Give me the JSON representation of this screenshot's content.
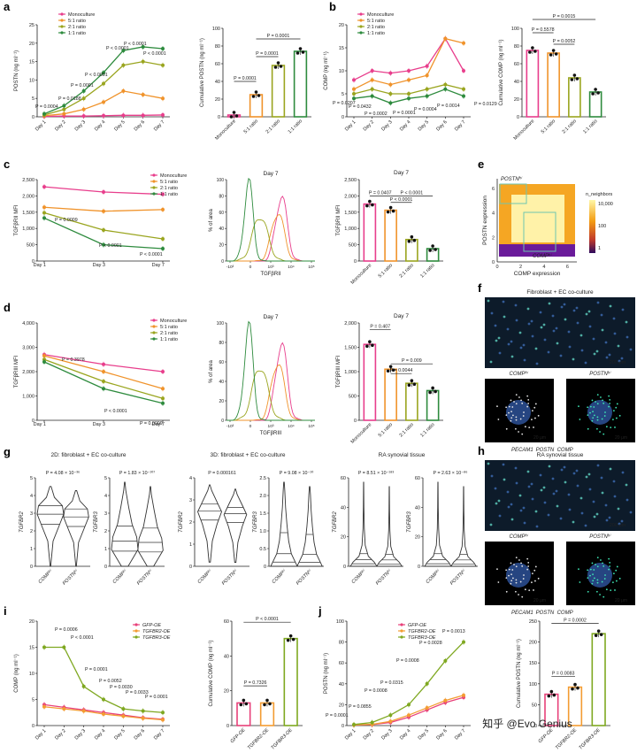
{
  "colors": {
    "mono": "#e83e8c",
    "r51": "#f0932b",
    "r21": "#9aa51f",
    "r11": "#2e8b3e",
    "gfp": "#e8417a",
    "tgfbr2": "#f39c32",
    "tgfbr3": "#7fa821"
  },
  "panels": {
    "a": {
      "letter": "a",
      "line": {
        "type": "line",
        "ylabel": "POSTN (ng ml⁻¹)",
        "ylim": [
          0,
          25
        ],
        "yticks": [
          0,
          5,
          10,
          15,
          20,
          25
        ],
        "categories": [
          "Day 1",
          "Day 2",
          "Day 3",
          "Day 4",
          "Day 5",
          "Day 6",
          "Day 7"
        ],
        "series": [
          {
            "name": "Monoculture",
            "values": [
              0.1,
              0.2,
              0.2,
              0.3,
              0.4,
              0.4,
              0.5
            ]
          },
          {
            "name": "5:1 ratio",
            "values": [
              0.3,
              0.8,
              2.0,
              4.0,
              7.0,
              6.0,
              5.0
            ]
          },
          {
            "name": "2:1 ratio",
            "values": [
              0.5,
              2.0,
              5.0,
              9.0,
              14.0,
              15.0,
              14.0
            ]
          },
          {
            "name": "1:1 ratio",
            "values": [
              0.8,
              3.0,
              7.0,
              12.0,
              18.0,
              19.0,
              18.5
            ]
          }
        ],
        "annotations": [
          "P = 0.0004",
          "P = 0.0188",
          "P = 0.0001",
          "P < 0.0001",
          "P < 0.0001",
          "P < 0.0001",
          "P < 0.0001"
        ]
      },
      "bar": {
        "type": "bar",
        "ylabel": "Cumulative POSTN (ng ml⁻¹)",
        "ylim": [
          0,
          100
        ],
        "yticks": [
          0,
          20,
          40,
          60,
          80,
          100
        ],
        "categories": [
          "Monoculture",
          "5:1 ratio",
          "2:1 ratio",
          "1:1 ratio"
        ],
        "values": [
          2,
          25,
          58,
          74
        ],
        "annotations": [
          "P = 0.0001",
          "P = 0.0001",
          "P = 0.0001"
        ]
      }
    },
    "b": {
      "letter": "b",
      "line": {
        "type": "line",
        "ylabel": "COMP (ng ml⁻¹)",
        "ylim": [
          0,
          20
        ],
        "yticks": [
          0,
          5,
          10,
          15,
          20
        ],
        "categories": [
          "Day 1",
          "Day 2",
          "Day 3",
          "Day 4",
          "Day 5",
          "Day 6",
          "Day 7"
        ],
        "series": [
          {
            "name": "Monoculture",
            "values": [
              8,
              10,
              9.5,
              10,
              11,
              17,
              10
            ]
          },
          {
            "name": "5:1 ratio",
            "values": [
              6,
              8,
              7,
              8,
              9,
              17,
              16
            ]
          },
          {
            "name": "2:1 ratio",
            "values": [
              5,
              6,
              5,
              5,
              6,
              7,
              6
            ]
          },
          {
            "name": "1:1 ratio",
            "values": [
              4,
              4.5,
              3,
              4,
              4.5,
              6,
              4.5
            ]
          }
        ],
        "annotations": [
          "P = 0.0207",
          "P = 0.0432",
          "P = 0.0002",
          "P = 0.0001",
          "P = 0.0004",
          "P = 0.0014",
          "P = 0.0129"
        ]
      },
      "bar": {
        "type": "bar",
        "ylabel": "Cumulative COMP (ng ml⁻¹)",
        "ylim": [
          0,
          100
        ],
        "yticks": [
          0,
          20,
          40,
          60,
          80,
          100
        ],
        "categories": [
          "Monoculture",
          "5:1 ratio",
          "2:1 ratio",
          "1:1 ratio"
        ],
        "values": [
          75,
          72,
          44,
          28
        ],
        "annotations": [
          "P = 0.5578",
          "P = 0.0015",
          "P = 0.0052"
        ]
      }
    },
    "c": {
      "letter": "c",
      "line": {
        "type": "line",
        "ylabel": "TGFβRII MFI",
        "ylim": [
          0,
          2500
        ],
        "yticks": [
          0,
          500,
          1000,
          1500,
          2000,
          2500
        ],
        "categories": [
          "Day 1",
          "Day 3",
          "Day 7"
        ],
        "series": [
          {
            "name": "Monoculture",
            "values": [
              2280,
              2120,
              2050
            ]
          },
          {
            "name": "5:1 ratio",
            "values": [
              1650,
              1530,
              1580
            ]
          },
          {
            "name": "2:1 ratio",
            "values": [
              1480,
              950,
              680
            ]
          },
          {
            "name": "1:1 ratio",
            "values": [
              1320,
              500,
              380
            ]
          }
        ],
        "annotations": [
          "P = 0.0009",
          "P < 0.0001",
          "P < 0.0001"
        ]
      },
      "hist": {
        "title": "Day 7",
        "xlabel": "TGFβRII",
        "ylabel": "% of area",
        "yticks": [
          "0",
          "20",
          "40",
          "60",
          "80",
          "100"
        ],
        "xticks": [
          "-10³",
          "0",
          "10³",
          "10⁴",
          "10⁵"
        ]
      },
      "bar": {
        "type": "bar",
        "title": "Day 7",
        "ylabel": "TGFβRII MFI",
        "ylim": [
          0,
          2500
        ],
        "yticks": [
          0,
          500,
          1000,
          1500,
          2000,
          2500
        ],
        "categories": [
          "Monoculture",
          "5:1 ratio",
          "2:1 ratio",
          "1:1 ratio"
        ],
        "values": [
          1750,
          1560,
          660,
          380
        ],
        "annotations": [
          "P = 0.0407",
          "P < 0.0001",
          "P < 0.0001"
        ]
      }
    },
    "d": {
      "letter": "d",
      "line": {
        "type": "line",
        "ylabel": "TGFβRIII MFI",
        "ylim": [
          0,
          4000
        ],
        "yticks": [
          0,
          1000,
          2000,
          3000,
          4000
        ],
        "categories": [
          "Day 1",
          "Day 3",
          "Day 7"
        ],
        "series": [
          {
            "name": "Monoculture",
            "values": [
              2700,
              2300,
              2000
            ]
          },
          {
            "name": "5:1 ratio",
            "values": [
              2650,
              2000,
              1300
            ]
          },
          {
            "name": "2:1 ratio",
            "values": [
              2500,
              1600,
              900
            ]
          },
          {
            "name": "1:1 ratio",
            "values": [
              2400,
              1300,
              700
            ]
          }
        ],
        "annotations": [
          "P = 0.3978",
          "P < 0.0001",
          "P = 0.0009"
        ]
      },
      "hist": {
        "title": "Day 7",
        "xlabel": "TGFβRIII",
        "ylabel": "% of area",
        "yticks": [
          "0",
          "20",
          "40",
          "60",
          "80",
          "100"
        ],
        "xticks": [
          "-10³",
          "0",
          "10³",
          "10⁴",
          "10⁵"
        ]
      },
      "bar": {
        "type": "bar",
        "title": "Day 7",
        "ylabel": "TGFβRIII MFI",
        "ylim": [
          0,
          2000
        ],
        "yticks": [
          0,
          500,
          1000,
          1500,
          2000
        ],
        "categories": [
          "Monoculture",
          "5:1 ratio",
          "2:1 ratio",
          "1:1 ratio"
        ],
        "values": [
          1560,
          1050,
          760,
          610
        ],
        "annotations": [
          "P = 0.407",
          "P = 0.009",
          "P = 0.0044"
        ]
      }
    },
    "e": {
      "letter": "e",
      "xlabel": "COMP expression",
      "ylabel": "POSTN expression",
      "xticks": [
        "0",
        "2",
        "4",
        "6"
      ],
      "yticks": [
        "0",
        "2",
        "4",
        "6"
      ],
      "legend_title": "n_neighbors",
      "legend_ticks": [
        "10,000",
        "100",
        "1"
      ],
      "gate_hi": "POSTNʰⁱ",
      "gate_lo": "COMPʰⁱ"
    },
    "f": {
      "letter": "f",
      "title": "Fibroblast + EC co-culture",
      "scale1": "200 μm",
      "sub1": "COMPʰⁱ",
      "sub2": "POSTNʰⁱ",
      "scale2": "20 μm",
      "scale3": "20 μm",
      "legend": [
        "PECAM1",
        "POSTN",
        "COMP"
      ]
    },
    "g": {
      "letter": "g",
      "groups": [
        {
          "title": "2D: fibroblast + EC co-culture",
          "plots": [
            {
              "gene": "TGFBR2",
              "p": "P = 4.08 × 10⁻³⁶",
              "yticks": [
                "0",
                "1",
                "2",
                "3",
                "4",
                "5"
              ],
              "ymax": 5,
              "shape": "2d2",
              "categories": [
                "COMPʰⁱ",
                "POSTNʰⁱ"
              ]
            },
            {
              "gene": "TGFBR3",
              "p": "P = 1.83 × 10⁻¹⁰⁷",
              "yticks": [
                "0",
                "1",
                "2",
                "3",
                "4",
                "5"
              ],
              "ymax": 5,
              "shape": "2d3",
              "categories": [
                "COMPʰⁱ",
                "POSTNʰⁱ"
              ]
            }
          ]
        },
        {
          "title": "3D: fibroblast + EC co-culture",
          "plots": [
            {
              "gene": "TGFBR2",
              "p": "P = 0.000161",
              "yticks": [
                "0",
                "1",
                "2",
                "3",
                "4"
              ],
              "ymax": 4,
              "shape": "3d2",
              "categories": [
                "COMPʰⁱ",
                "POSTNʰⁱ"
              ]
            },
            {
              "gene": "TGFBR3",
              "p": "P = 9.08 × 10⁻¹⁰",
              "yticks": [
                "0",
                "0.5",
                "1.0",
                "1.5",
                "2.0",
                "2.5"
              ],
              "ymax": 2.5,
              "shape": "3d3",
              "categories": [
                "COMPʰⁱ",
                "POSTNʰⁱ"
              ]
            }
          ]
        },
        {
          "title": "RA synovial tissue",
          "plots": [
            {
              "gene": "TGFBR2",
              "p": "P = 8.51 × 10⁻¹⁸³",
              "yticks": [
                "0",
                "20",
                "40",
                "60"
              ],
              "ymax": 60,
              "shape": "ra",
              "categories": [
                "COMPʰⁱ",
                "POSTNʰⁱ"
              ]
            },
            {
              "gene": "TGFBR3",
              "p": "P = 2.63 × 10⁻⁸⁶",
              "yticks": [
                "0",
                "20",
                "40",
                "60"
              ],
              "ymax": 60,
              "shape": "ra",
              "categories": [
                "COMPʰⁱ",
                "POSTNʰⁱ"
              ]
            }
          ]
        }
      ]
    },
    "h": {
      "letter": "h",
      "title": "RA synovial tissue",
      "scale1": "200 μm",
      "sub1": "COMPʰⁱ",
      "sub2": "POSTNʰⁱ",
      "scale2": "20 μm",
      "scale3": "20 μm",
      "legend": [
        "PECAM1",
        "POSTN",
        "COMP"
      ]
    },
    "i": {
      "letter": "i",
      "line": {
        "type": "line",
        "ylabel": "COMP (ng ml⁻¹)",
        "ylim": [
          0,
          20
        ],
        "yticks": [
          0,
          5,
          10,
          15,
          20
        ],
        "categories": [
          "Day 1",
          "Day 2",
          "Day 3",
          "Day 4",
          "Day 5",
          "Day 6",
          "Day 7"
        ],
        "series": [
          {
            "name": "GFP-OE",
            "values": [
              4,
              3.5,
              3,
              2.5,
              2,
              1.5,
              1.2
            ]
          },
          {
            "name": "TGFBR2-OE",
            "values": [
              3.6,
              3.2,
              2.8,
              2.2,
              1.8,
              1.4,
              1.1
            ]
          },
          {
            "name": "TGFBR3-OE",
            "values": [
              15,
              15,
              7.5,
              5,
              3.2,
              2.8,
              2.5
            ]
          }
        ],
        "annotations": [
          "P = 0.0006",
          "P < 0.0001",
          "P = 0.0001",
          "P = 0.0052",
          "P = 0.0030",
          "P = 0.0033",
          "P = 0.0001"
        ]
      },
      "bar": {
        "type": "bar",
        "ylabel": "Cumulative COMP (ng ml⁻¹)",
        "ylim": [
          0,
          60
        ],
        "yticks": [
          0,
          20,
          40,
          60
        ],
        "categories": [
          "GFP-OE",
          "TGFBR2-OE",
          "TGFBR3-OE"
        ],
        "values": [
          13,
          13,
          50
        ],
        "annotations": [
          "P = 0.7326",
          "P < 0.0001"
        ]
      }
    },
    "j": {
      "letter": "j",
      "line": {
        "type": "line",
        "ylabel": "POSTN (ng ml⁻¹)",
        "ylim": [
          0,
          100
        ],
        "yticks": [
          0,
          20,
          40,
          60,
          80,
          100
        ],
        "categories": [
          "Day 1",
          "Day 2",
          "Day 3",
          "Day 4",
          "Day 5",
          "Day 6",
          "Day 7"
        ],
        "series": [
          {
            "name": "GFP-OE",
            "values": [
              0.5,
              1,
              3,
              8,
              15,
              22,
              27
            ]
          },
          {
            "name": "TGFBR2-OE",
            "values": [
              0.5,
              1.2,
              4,
              10,
              17,
              24,
              29
            ]
          },
          {
            "name": "TGFBR3-OE",
            "values": [
              1,
              3,
              10,
              20,
              40,
              62,
              80
            ]
          }
        ],
        "annotations": [
          "P = 0.0001",
          "P = 0.0855",
          "P = 0.0008",
          "P = 0.0315",
          "P = 0.0008",
          "P = 0.0028",
          "P = 0.0013"
        ]
      },
      "bar": {
        "type": "bar",
        "ylabel": "Cumulative POSTN (ng ml⁻¹)",
        "ylim": [
          0,
          250
        ],
        "yticks": [
          0,
          50,
          100,
          150,
          200,
          250
        ],
        "categories": [
          "GFP-OE",
          "TGFBR2-OE",
          "TGFBR3-OE"
        ],
        "values": [
          75,
          92,
          220
        ],
        "annotations": [
          "P = 0.0083",
          "P = 0.0002"
        ]
      }
    }
  },
  "watermark": "知乎 @Evo Genius"
}
